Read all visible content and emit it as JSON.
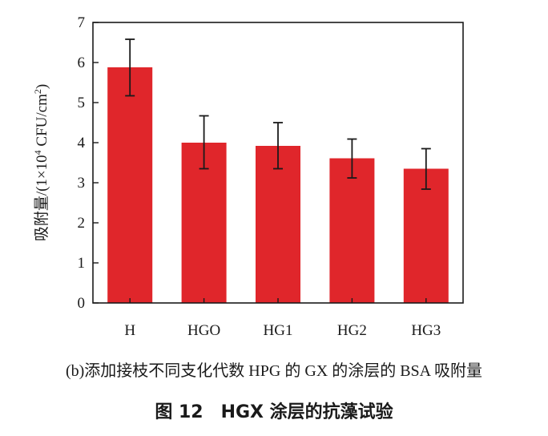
{
  "chart_data": {
    "type": "bar",
    "categories": [
      "H",
      "HGO",
      "HG1",
      "HG2",
      "HG3"
    ],
    "values": [
      5.88,
      4.0,
      3.92,
      3.61,
      3.35
    ],
    "error_low": [
      5.17,
      3.35,
      3.35,
      3.12,
      2.84
    ],
    "error_high": [
      6.58,
      4.67,
      4.5,
      4.09,
      3.85
    ],
    "ylim": [
      0,
      7
    ],
    "yticks": [
      "0",
      "1",
      "2",
      "3",
      "4",
      "5",
      "6",
      "7"
    ],
    "ylabel_prefix": "吸附量/(1×10",
    "ylabel_sup1": "4",
    "ylabel_mid": " CFU/cm",
    "ylabel_sup2": "2",
    "ylabel_suffix": ")",
    "xlabel": "",
    "bar_color": "#e0262b",
    "grid": false
  },
  "subcaption": "(b)添加接枝不同支化代数 HPG 的 GX 的涂层的 BSA 吸附量",
  "caption": "图 12　HGX 涂层的抗藻试验"
}
